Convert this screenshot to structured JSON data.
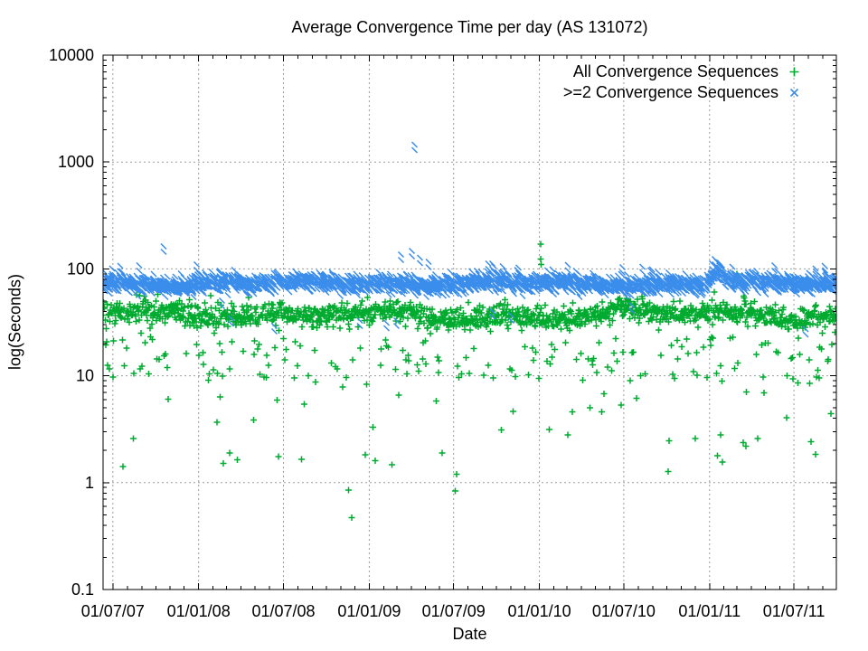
{
  "page": {
    "background": "#ffffff"
  },
  "chart_data": {
    "type": "scatter",
    "title": "Average Convergence Time per day (AS 131072)",
    "xlabel": "Date",
    "ylabel": "log(Seconds)",
    "y_scale": "log10",
    "ylim": [
      0.1,
      10000
    ],
    "grid": true,
    "grid_color": "#9c9c9c",
    "axis_color": "#000000",
    "legend_position": "top-right-inside",
    "seed": 131072,
    "x_range": {
      "start": "2007-06-10",
      "end": "2011-09-30"
    },
    "y_ticks": [
      {
        "label": "0.1",
        "value": 0.1
      },
      {
        "label": "1",
        "value": 1
      },
      {
        "label": "10",
        "value": 10
      },
      {
        "label": "100",
        "value": 100
      },
      {
        "label": "1000",
        "value": 1000
      },
      {
        "label": "10000",
        "value": 10000
      }
    ],
    "x_ticks": [
      {
        "label": "01/07/07",
        "date": "2007-07-01"
      },
      {
        "label": "01/01/08",
        "date": "2008-01-01"
      },
      {
        "label": "01/07/08",
        "date": "2008-07-01"
      },
      {
        "label": "01/01/09",
        "date": "2009-01-01"
      },
      {
        "label": "01/07/09",
        "date": "2009-07-01"
      },
      {
        "label": "01/01/10",
        "date": "2010-01-01"
      },
      {
        "label": "01/07/10",
        "date": "2010-07-01"
      },
      {
        "label": "01/01/11",
        "date": "2011-01-01"
      },
      {
        "label": "01/07/11",
        "date": "2011-07-01"
      }
    ],
    "series": [
      {
        "name": "All Convergence Sequences",
        "marker": "plus",
        "color": "#00ab30",
        "band_summary": {
          "typical_seconds": 38,
          "dense_band_seconds": [
            28,
            52
          ],
          "cadence": "daily"
        },
        "generator": {
          "log10_center": 1.585,
          "log10_sigma": 0.055,
          "mid_prob": 0.1,
          "mid_depth": [
            0.22,
            0.62
          ],
          "low_prob": 0.028,
          "low_depth": [
            0.65,
            1.5
          ],
          "high_prob": 0.004,
          "high_lift": [
            0.1,
            0.22
          ],
          "skip_prob": 0.02,
          "trend": -0.015,
          "wiggles": [
            [
              0.03,
              2.6,
              0.2
            ],
            [
              0.018,
              6.3,
              0.8
            ]
          ],
          "bumps": [
            {
              "t": 0.48,
              "amp": -0.055,
              "width": 0.06
            },
            {
              "t": 0.71,
              "amp": 0.07,
              "width": 0.01
            }
          ]
        },
        "outliers": [
          [
            "2010-01-04",
            170
          ],
          [
            "2010-01-04",
            124
          ],
          [
            "2010-01-05",
            110
          ],
          [
            "2008-11-18",
            0.85
          ],
          [
            "2008-11-24",
            0.47
          ],
          [
            "2009-07-04",
            0.84
          ],
          [
            "2007-08-14",
            2.6
          ],
          [
            "2008-03-08",
            1.9
          ],
          [
            "2008-06-20",
            1.75
          ],
          [
            "2009-01-14",
            1.6
          ],
          [
            "2010-12-01",
            2.6
          ],
          [
            "2011-03-20",
            2.2
          ],
          [
            "2011-09-18",
            4.4
          ],
          [
            "2010-05-15",
            4.6
          ],
          [
            "2010-05-20",
            6.8
          ],
          [
            "2011-01-25",
            2.8
          ],
          [
            "2011-03-01",
            90
          ]
        ]
      },
      {
        "name": ">=2 Convergence Sequences",
        "marker": "cross",
        "color": "#3a8deb",
        "band_summary": {
          "typical_seconds": 68,
          "dense_band_seconds": [
            55,
            90
          ],
          "cadence": "daily"
        },
        "generator": {
          "log10_center": 1.838,
          "log10_sigma": 0.035,
          "mid_prob": 0.0,
          "mid_depth": [
            0,
            0
          ],
          "low_prob": 0.005,
          "low_depth": [
            0.2,
            0.45
          ],
          "high_prob": 0.012,
          "high_lift": [
            0.07,
            0.15
          ],
          "skip_prob": 0.02,
          "trend": 0,
          "wiggles": [
            [
              0.012,
              3.1,
              0.5
            ],
            [
              0.01,
              8.2,
              0.0
            ]
          ],
          "bumps": [
            {
              "t": 0.838,
              "amp": 0.12,
              "width": 0.01
            }
          ]
        },
        "outliers": [
          [
            "2009-04-08",
            1290
          ],
          [
            "2007-10-18",
            145
          ],
          [
            "2009-03-10",
            121
          ],
          [
            "2009-04-02",
            131
          ],
          [
            "2009-04-20",
            113
          ],
          [
            "2009-05-08",
            104
          ],
          [
            "2008-06-12",
            26
          ],
          [
            "2008-02-20",
            45
          ],
          [
            "2011-01-06",
            100
          ],
          [
            "2011-01-12",
            110
          ],
          [
            "2011-01-16",
            105
          ],
          [
            "2011-01-22",
            96
          ],
          [
            "2009-10-14",
            94
          ],
          [
            "2010-03-03",
            97
          ],
          [
            "2010-08-10",
            93
          ],
          [
            "2011-05-20",
            96
          ],
          [
            "2011-09-05",
            95
          ],
          [
            "2007-12-28",
            98
          ]
        ]
      }
    ]
  }
}
